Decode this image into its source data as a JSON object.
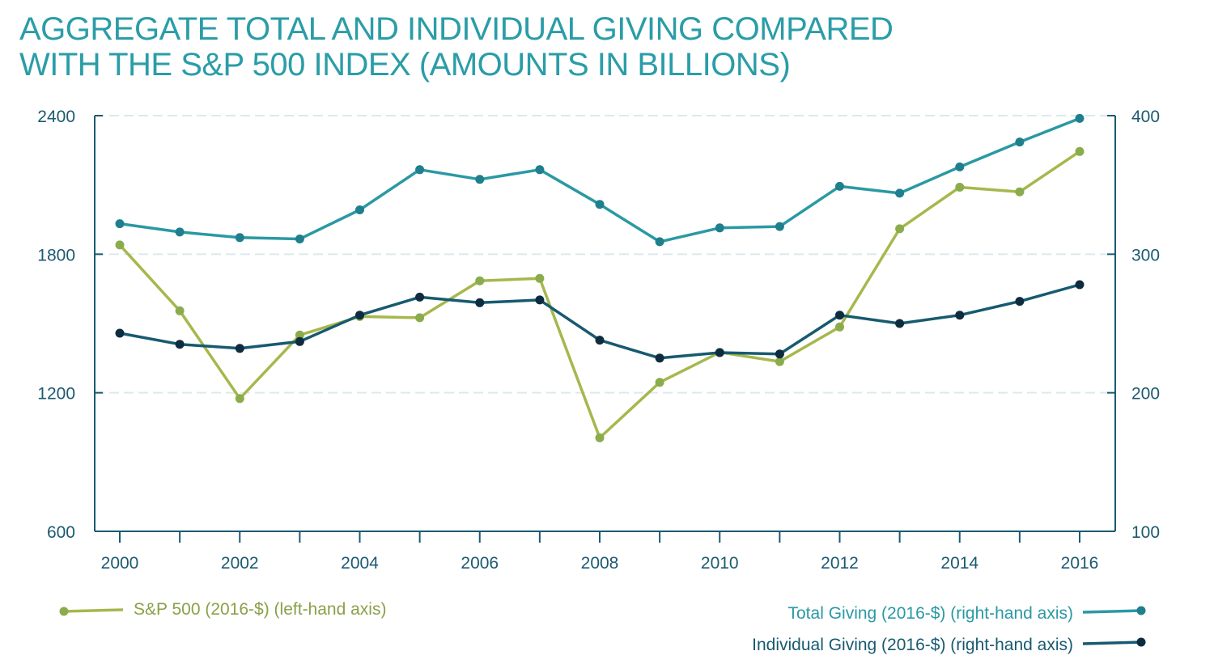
{
  "title_lines": [
    "AGGREGATE TOTAL AND INDIVIDUAL GIVING COMPARED",
    "WITH THE S&P 500 INDEX (AMOUNTS IN BILLIONS)"
  ],
  "colors": {
    "title": "#2a9da7",
    "axis": "#1b5a70",
    "grid": "#dde9ee",
    "sp500": "#a6b84c",
    "sp500_marker": "#8bac4c",
    "total_giving": "#2a99a4",
    "total_giving_marker": "#1f7f8d",
    "individual_giving": "#175a70",
    "individual_giving_marker": "#0e2c40"
  },
  "chart_data": {
    "type": "line",
    "x": [
      2000,
      2001,
      2002,
      2003,
      2004,
      2005,
      2006,
      2007,
      2008,
      2009,
      2010,
      2011,
      2012,
      2013,
      2014,
      2015,
      2016
    ],
    "x_tick_labels": [
      "2000",
      "2002",
      "2004",
      "2006",
      "2008",
      "2010",
      "2012",
      "2014",
      "2016"
    ],
    "left_axis": {
      "ylim": [
        600,
        2400
      ],
      "ticks": [
        "600",
        "1200",
        "1800",
        "2400"
      ]
    },
    "right_axis": {
      "ylim": [
        100,
        400
      ],
      "ticks": [
        "100",
        "200",
        "300",
        "400"
      ]
    },
    "grid": "horizontal dashed",
    "legend_position": "bottom",
    "series": [
      {
        "name": "S&P 500 (2016-$) (left-hand axis)",
        "axis": "left",
        "values": [
          1840,
          1555,
          1175,
          1450,
          1530,
          1525,
          1685,
          1695,
          1005,
          1245,
          1375,
          1335,
          1485,
          1910,
          2090,
          2070,
          2245
        ]
      },
      {
        "name": "Total Giving (2016-$) (right-hand axis)",
        "axis": "right",
        "values": [
          322,
          316,
          312,
          311,
          332,
          361,
          354,
          361,
          336,
          309,
          319,
          320,
          349,
          344,
          363,
          381,
          398
        ]
      },
      {
        "name": "Individual Giving (2016-$) (right-hand axis)",
        "axis": "right",
        "values": [
          243,
          235,
          232,
          237,
          256,
          269,
          265,
          267,
          238,
          225,
          229,
          228,
          256,
          250,
          256,
          266,
          278
        ]
      }
    ]
  }
}
